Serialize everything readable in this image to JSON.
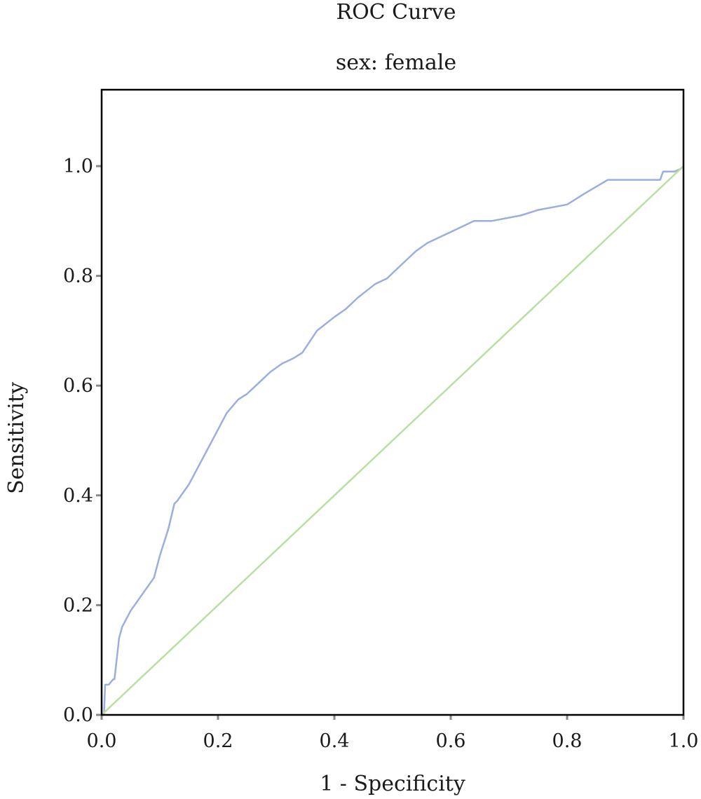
{
  "chart_data": {
    "type": "line",
    "title": "ROC Curve",
    "subtitle": "sex: female",
    "xlabel": "1 - Specificity",
    "ylabel": "Sensitivity",
    "xlim": [
      0.0,
      1.0
    ],
    "ylim": [
      0.0,
      1.13
    ],
    "x_ticks": [
      "0.0",
      "0.2",
      "0.4",
      "0.6",
      "0.8",
      "1.0"
    ],
    "y_ticks": [
      "0.0",
      "0.2",
      "0.4",
      "0.6",
      "0.8",
      "1.0"
    ],
    "grid": false,
    "legend": "none",
    "series": [
      {
        "color": "#9aaee0",
        "x": [
          0.0,
          0.004,
          0.006,
          0.012,
          0.02,
          0.022,
          0.03,
          0.035,
          0.05,
          0.07,
          0.09,
          0.1,
          0.115,
          0.125,
          0.13,
          0.15,
          0.165,
          0.18,
          0.2,
          0.215,
          0.235,
          0.25,
          0.27,
          0.29,
          0.31,
          0.33,
          0.345,
          0.37,
          0.4,
          0.42,
          0.44,
          0.47,
          0.49,
          0.52,
          0.54,
          0.56,
          0.6,
          0.64,
          0.67,
          0.72,
          0.75,
          0.8,
          0.83,
          0.87,
          0.9,
          0.96,
          0.965,
          0.985,
          0.995,
          1.0
        ],
        "y": [
          0.0,
          0.0,
          0.055,
          0.055,
          0.065,
          0.065,
          0.14,
          0.16,
          0.19,
          0.22,
          0.25,
          0.29,
          0.34,
          0.385,
          0.39,
          0.42,
          0.45,
          0.48,
          0.52,
          0.55,
          0.575,
          0.585,
          0.605,
          0.625,
          0.64,
          0.65,
          0.66,
          0.7,
          0.725,
          0.74,
          0.76,
          0.785,
          0.795,
          0.825,
          0.845,
          0.86,
          0.88,
          0.9,
          0.9,
          0.91,
          0.92,
          0.93,
          0.95,
          0.975,
          0.975,
          0.975,
          0.99,
          0.99,
          0.995,
          1.0
        ]
      },
      {
        "color": "#b8e0a0",
        "x": [
          0.0,
          1.0
        ],
        "y": [
          0.0,
          1.0
        ]
      }
    ]
  }
}
